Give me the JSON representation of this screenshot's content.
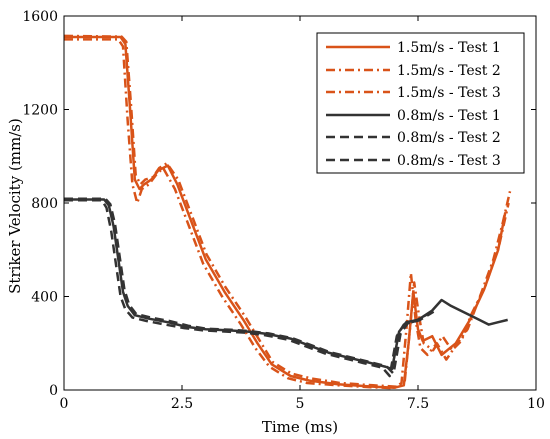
{
  "chart_data": {
    "type": "line",
    "xlabel": "Time (ms)",
    "ylabel": "Striker Velocity (mm/s)",
    "xlim": [
      0,
      10
    ],
    "ylim": [
      0,
      1600
    ],
    "xticks": [
      0,
      2.5,
      5,
      7.5,
      10
    ],
    "yticks": [
      0,
      400,
      800,
      1200,
      1600
    ],
    "xtick_labels": [
      "0",
      "2.5",
      "5",
      "7.5",
      "10"
    ],
    "ytick_labels": [
      "0",
      "400",
      "800",
      "1200",
      "1600"
    ],
    "grid": false,
    "legend_position": "top-right",
    "series": [
      {
        "name": "1.5m/s - Test 1",
        "color": "#d95319",
        "dash": "solid",
        "points": [
          [
            0,
            1510
          ],
          [
            1.2,
            1510
          ],
          [
            1.3,
            1480
          ],
          [
            1.4,
            1200
          ],
          [
            1.5,
            900
          ],
          [
            1.6,
            860
          ],
          [
            1.7,
            880
          ],
          [
            1.85,
            900
          ],
          [
            2.0,
            940
          ],
          [
            2.2,
            960
          ],
          [
            2.4,
            880
          ],
          [
            2.7,
            720
          ],
          [
            3.0,
            560
          ],
          [
            3.4,
            420
          ],
          [
            3.8,
            300
          ],
          [
            4.1,
            200
          ],
          [
            4.4,
            110
          ],
          [
            4.8,
            60
          ],
          [
            5.2,
            40
          ],
          [
            5.8,
            25
          ],
          [
            6.5,
            15
          ],
          [
            7.0,
            10
          ],
          [
            7.2,
            20
          ],
          [
            7.3,
            200
          ],
          [
            7.4,
            420
          ],
          [
            7.5,
            260
          ],
          [
            7.6,
            210
          ],
          [
            7.8,
            230
          ],
          [
            8.0,
            150
          ],
          [
            8.3,
            200
          ],
          [
            8.6,
            300
          ],
          [
            8.9,
            430
          ],
          [
            9.2,
            600
          ],
          [
            9.35,
            760
          ]
        ]
      },
      {
        "name": "1.5m/s - Test 2",
        "color": "#d95319",
        "dash": "dashdot",
        "points": [
          [
            0,
            1500
          ],
          [
            1.15,
            1500
          ],
          [
            1.25,
            1470
          ],
          [
            1.35,
            1150
          ],
          [
            1.45,
            880
          ],
          [
            1.55,
            800
          ],
          [
            1.65,
            860
          ],
          [
            1.8,
            880
          ],
          [
            1.95,
            920
          ],
          [
            2.1,
            950
          ],
          [
            2.35,
            860
          ],
          [
            2.65,
            700
          ],
          [
            2.95,
            540
          ],
          [
            3.35,
            400
          ],
          [
            3.75,
            280
          ],
          [
            4.05,
            180
          ],
          [
            4.35,
            100
          ],
          [
            4.75,
            50
          ],
          [
            5.15,
            30
          ],
          [
            5.8,
            20
          ],
          [
            6.5,
            12
          ],
          [
            7.0,
            8
          ],
          [
            7.15,
            30
          ],
          [
            7.25,
            250
          ],
          [
            7.35,
            500
          ],
          [
            7.45,
            300
          ],
          [
            7.55,
            180
          ],
          [
            7.7,
            150
          ],
          [
            7.9,
            200
          ],
          [
            8.1,
            130
          ],
          [
            8.3,
            190
          ],
          [
            8.55,
            260
          ],
          [
            8.85,
            420
          ],
          [
            9.1,
            560
          ],
          [
            9.3,
            720
          ],
          [
            9.45,
            850
          ]
        ]
      },
      {
        "name": "1.5m/s - Test 3",
        "color": "#d95319",
        "dash": "dashdot",
        "points": [
          [
            0,
            1515
          ],
          [
            1.22,
            1512
          ],
          [
            1.32,
            1490
          ],
          [
            1.42,
            1220
          ],
          [
            1.52,
            920
          ],
          [
            1.62,
            880
          ],
          [
            1.72,
            900
          ],
          [
            1.88,
            910
          ],
          [
            2.02,
            950
          ],
          [
            2.18,
            970
          ],
          [
            2.42,
            900
          ],
          [
            2.72,
            740
          ],
          [
            3.02,
            580
          ],
          [
            3.42,
            440
          ],
          [
            3.82,
            320
          ],
          [
            4.12,
            220
          ],
          [
            4.42,
            120
          ],
          [
            4.82,
            70
          ],
          [
            5.22,
            50
          ],
          [
            5.85,
            30
          ],
          [
            6.55,
            20
          ],
          [
            7.05,
            14
          ],
          [
            7.22,
            40
          ],
          [
            7.32,
            240
          ],
          [
            7.42,
            460
          ],
          [
            7.52,
            320
          ],
          [
            7.62,
            200
          ],
          [
            7.82,
            170
          ],
          [
            8.02,
            230
          ],
          [
            8.22,
            170
          ],
          [
            8.42,
            210
          ],
          [
            8.62,
            320
          ],
          [
            8.92,
            440
          ],
          [
            9.22,
            620
          ],
          [
            9.42,
            800
          ]
        ]
      },
      {
        "name": "0.8m/s - Test 1",
        "color": "#333333",
        "dash": "solid",
        "points": [
          [
            0,
            815
          ],
          [
            0.85,
            815
          ],
          [
            0.95,
            790
          ],
          [
            1.05,
            700
          ],
          [
            1.15,
            560
          ],
          [
            1.25,
            420
          ],
          [
            1.35,
            360
          ],
          [
            1.5,
            320
          ],
          [
            1.8,
            305
          ],
          [
            2.2,
            290
          ],
          [
            2.6,
            270
          ],
          [
            3.0,
            260
          ],
          [
            3.5,
            255
          ],
          [
            3.9,
            250
          ],
          [
            4.3,
            240
          ],
          [
            4.8,
            220
          ],
          [
            5.2,
            190
          ],
          [
            5.6,
            160
          ],
          [
            6.0,
            140
          ],
          [
            6.4,
            120
          ],
          [
            6.8,
            100
          ],
          [
            6.95,
            90
          ],
          [
            7.1,
            250
          ],
          [
            7.25,
            290
          ],
          [
            7.5,
            300
          ],
          [
            7.8,
            340
          ],
          [
            8.0,
            385
          ],
          [
            8.2,
            360
          ],
          [
            8.5,
            330
          ],
          [
            8.8,
            300
          ],
          [
            9.0,
            280
          ],
          [
            9.2,
            290
          ],
          [
            9.4,
            300
          ]
        ]
      },
      {
        "name": "0.8m/s - Test 2",
        "color": "#333333",
        "dash": "dashed",
        "points": [
          [
            0,
            812
          ],
          [
            0.8,
            812
          ],
          [
            0.9,
            780
          ],
          [
            1.0,
            680
          ],
          [
            1.1,
            540
          ],
          [
            1.2,
            400
          ],
          [
            1.3,
            345
          ],
          [
            1.45,
            310
          ],
          [
            1.75,
            295
          ],
          [
            2.15,
            280
          ],
          [
            2.55,
            265
          ],
          [
            2.95,
            255
          ],
          [
            3.45,
            250
          ],
          [
            3.85,
            245
          ],
          [
            4.25,
            235
          ],
          [
            4.75,
            215
          ],
          [
            5.15,
            185
          ],
          [
            5.55,
            155
          ],
          [
            5.95,
            135
          ],
          [
            6.35,
            115
          ],
          [
            6.75,
            95
          ],
          [
            6.9,
            60
          ],
          [
            7.05,
            230
          ],
          [
            7.2,
            280
          ],
          [
            7.45,
            295
          ],
          [
            7.75,
            330
          ]
        ]
      },
      {
        "name": "0.8m/s - Test 3",
        "color": "#333333",
        "dash": "dashed",
        "points": [
          [
            0,
            818
          ],
          [
            0.88,
            818
          ],
          [
            0.98,
            795
          ],
          [
            1.08,
            710
          ],
          [
            1.18,
            570
          ],
          [
            1.28,
            430
          ],
          [
            1.38,
            365
          ],
          [
            1.53,
            325
          ],
          [
            1.83,
            310
          ],
          [
            2.23,
            295
          ],
          [
            2.63,
            275
          ],
          [
            3.03,
            262
          ],
          [
            3.53,
            258
          ],
          [
            3.93,
            252
          ],
          [
            4.33,
            242
          ],
          [
            4.83,
            222
          ],
          [
            5.23,
            192
          ],
          [
            5.63,
            162
          ],
          [
            6.03,
            142
          ],
          [
            6.43,
            122
          ],
          [
            6.83,
            102
          ],
          [
            6.98,
            70
          ],
          [
            7.13,
            240
          ],
          [
            7.28,
            285
          ],
          [
            7.53,
            298
          ],
          [
            7.83,
            335
          ]
        ]
      }
    ]
  }
}
